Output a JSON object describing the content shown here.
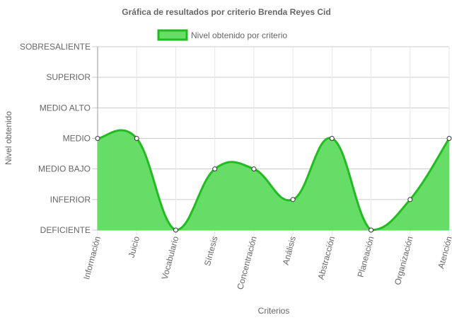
{
  "chart_data": {
    "type": "area",
    "title": "Gráfica de resultados por criterio Brenda Reyes Cid",
    "xlabel": "Criterios",
    "ylabel": "Nivel obtenido",
    "categories": [
      "Información",
      "Juicio",
      "Vocabulario",
      "Síntesis",
      "Concentración",
      "Análisis",
      "Abstracción",
      "Planeación",
      "Organización",
      "Atención"
    ],
    "y_levels": [
      "DEFICIENTE",
      "INFERIOR",
      "MEDIO BAJO",
      "MEDIO",
      "MEDIO ALTO",
      "SUPERIOR",
      "SOBRESALIENTE"
    ],
    "series": [
      {
        "name": "Nivel obtenido por criterio",
        "values": [
          3,
          3,
          0,
          2,
          2,
          1,
          3,
          0,
          1,
          3
        ]
      }
    ],
    "ylim": [
      0,
      6
    ],
    "grid": true,
    "legend_position": "top",
    "colors": {
      "fill": "#66dd66",
      "stroke": "#22bb22",
      "point_fill": "#ffffff",
      "point_stroke": "#333333",
      "grid": "#cccccc",
      "text": "#666666"
    }
  }
}
